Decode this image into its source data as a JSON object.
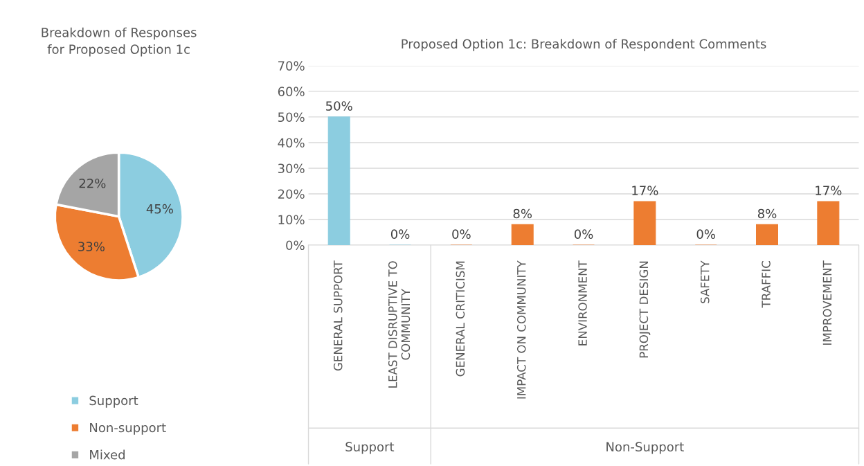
{
  "chart_data": [
    {
      "type": "pie",
      "title": "Breakdown of Responses\nfor Proposed Option 1c",
      "categories": [
        "Support",
        "Non-support",
        "Mixed"
      ],
      "values": [
        45,
        33,
        22
      ],
      "colors": [
        "#8ccde0",
        "#ed7d31",
        "#a5a5a5"
      ],
      "value_labels": [
        "45%",
        "33%",
        "22%"
      ],
      "legend": "bottom"
    },
    {
      "type": "bar",
      "title": "Proposed Option 1c: Breakdown of Respondent Comments",
      "categories": [
        "GENERAL SUPPORT",
        "LEAST DISRUPTIVE TO\nCOMMUNITY",
        "GENERAL CRITICISM",
        "IMPACT ON COMMUNITY",
        "ENVIRONMENT",
        "PROJECT DESIGN",
        "SAFETY",
        "TRAFFIC",
        "IMPROVEMENT"
      ],
      "values": [
        50,
        0,
        0,
        8,
        0,
        17,
        0,
        8,
        17
      ],
      "colors": [
        "#8ccde0",
        "#8ccde0",
        "#ed7d31",
        "#ed7d31",
        "#ed7d31",
        "#ed7d31",
        "#ed7d31",
        "#ed7d31",
        "#ed7d31"
      ],
      "value_labels": [
        "50%",
        "0%",
        "0%",
        "8%",
        "0%",
        "17%",
        "0%",
        "8%",
        "17%"
      ],
      "ylim": [
        0,
        70
      ],
      "yticks": [
        {
          "value": 0,
          "label": "0%"
        },
        {
          "value": 10,
          "label": "10%"
        },
        {
          "value": 20,
          "label": "20%"
        },
        {
          "value": 30,
          "label": "30%"
        },
        {
          "value": 40,
          "label": "40%"
        },
        {
          "value": 50,
          "label": "50%"
        },
        {
          "value": 60,
          "label": "60%"
        },
        {
          "value": 70,
          "label": "70%"
        }
      ],
      "grid": "y",
      "annotations": [
        "Support",
        "Non-Support"
      ]
    }
  ]
}
